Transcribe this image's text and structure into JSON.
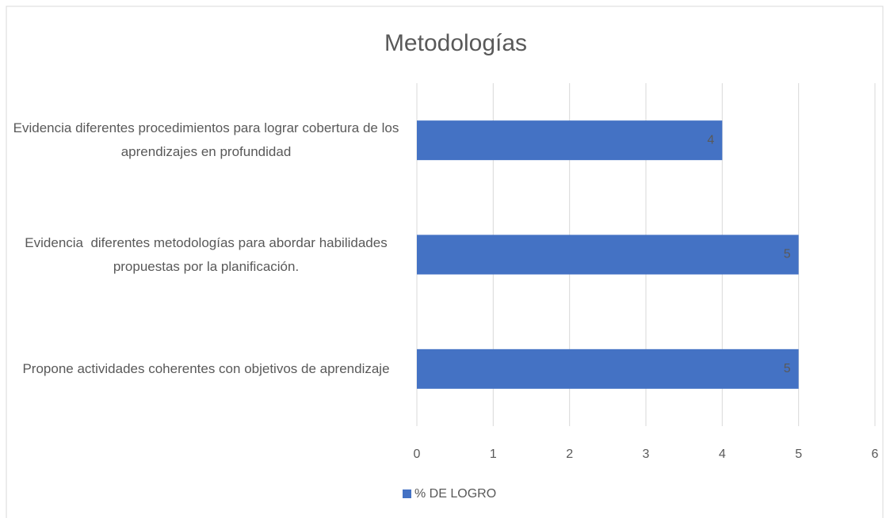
{
  "chart_data": {
    "type": "bar",
    "orientation": "horizontal",
    "title": "Metodologías",
    "categories": [
      "Evidencia diferentes procedimientos para lograr cobertura de los aprendizajes en profundidad",
      "Evidencia  diferentes metodologías para abordar habilidades propuestas por la planificación.",
      "Propone actividades coherentes con objetivos de aprendizaje"
    ],
    "series": [
      {
        "name": "% DE LOGRO",
        "color": "#4472c4",
        "values": [
          4,
          5,
          5
        ]
      }
    ],
    "xlim": [
      0,
      6
    ],
    "xticks": [
      0,
      1,
      2,
      3,
      4,
      5,
      6
    ],
    "grid": true,
    "legend": "bottom",
    "data_labels": true
  }
}
